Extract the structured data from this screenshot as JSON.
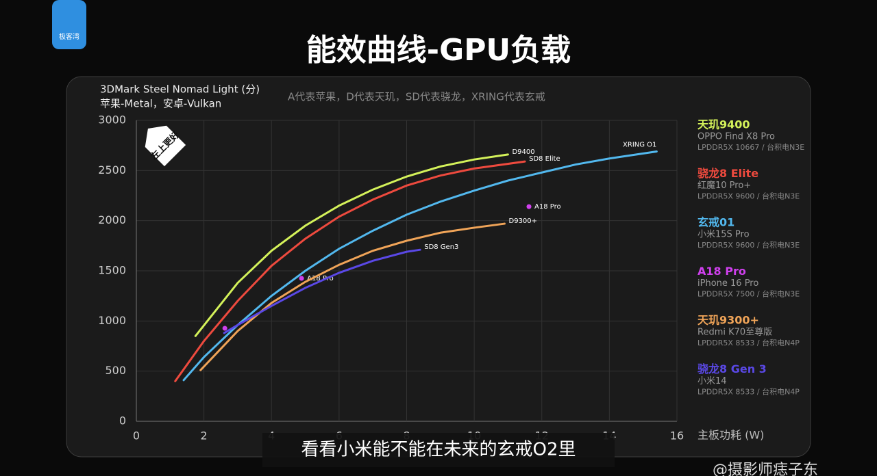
{
  "logo": "极客湾",
  "caption": "看看小米能不能在未来的玄戒O2里",
  "watermark": "@摄影师痣子东",
  "chart_data": {
    "type": "line",
    "title": "能效曲线-GPU负载",
    "y_label": [
      "3DMark Steel Nomad Light (分)",
      "苹果-Metal，安卓-Vulkan"
    ],
    "note": "A代表苹果，D代表天玑，SD代表骁龙，XRING代表玄戒",
    "x_label": "主板功耗 (W)",
    "badge": "左上更好",
    "xlim": [
      0,
      16
    ],
    "xticks": [
      0,
      2,
      4,
      6,
      8,
      10,
      12,
      14,
      16
    ],
    "ylim": [
      0,
      3000
    ],
    "yticks": [
      0,
      500,
      1000,
      1500,
      2000,
      2500,
      3000
    ],
    "grid": true,
    "series": [
      {
        "name": "天玑9400",
        "device": "OPPO Find X8 Pro",
        "memory": "LPDDR5X 10667 / 台积电N3E",
        "label": "D9400",
        "color": "#d4f25a",
        "x": [
          1.75,
          3,
          4,
          5,
          6,
          7,
          8,
          9,
          10,
          11
        ],
        "values": [
          850,
          1380,
          1700,
          1950,
          2150,
          2310,
          2440,
          2540,
          2610,
          2660
        ]
      },
      {
        "name": "骁龙8 Elite",
        "device": "红魔10 Pro+",
        "memory": "LPDDR5X 9600 / 台积电N3E",
        "label": "SD8 Elite",
        "color": "#ee4a3e",
        "x": [
          1.15,
          2,
          3,
          4,
          5,
          6,
          7,
          8,
          9,
          10,
          11.5
        ],
        "values": [
          400,
          800,
          1200,
          1550,
          1820,
          2040,
          2210,
          2350,
          2450,
          2520,
          2590
        ]
      },
      {
        "name": "玄戒01",
        "device": "小米15S Pro",
        "memory": "LPDDR5X 9600 / 台积电N3E",
        "label": "XRING O1",
        "color": "#52b8ee",
        "x": [
          1.4,
          2,
          3,
          4,
          5,
          6,
          7,
          8,
          9,
          10,
          11,
          12,
          13,
          14,
          15.4
        ],
        "values": [
          410,
          640,
          960,
          1250,
          1500,
          1720,
          1900,
          2060,
          2190,
          2300,
          2400,
          2480,
          2560,
          2620,
          2690
        ]
      },
      {
        "name": "A18 Pro",
        "device": "iPhone 16 Pro",
        "memory": "LPDDR5X 7500 / 台积电N3E",
        "type": "scatter",
        "color": "#d040ee",
        "x": [
          2.62,
          4.89,
          11.62
        ],
        "values": [
          927,
          1425,
          2140
        ],
        "point_labels": [
          null,
          "A18 Pro",
          "A18 Pro"
        ]
      },
      {
        "name": "天玑9300+",
        "device": "Redmi K70至尊版",
        "memory": "LPDDR5X 8533 / 台积电N4P",
        "label": "D9300+",
        "color": "#f0a458",
        "x": [
          1.9,
          3,
          4,
          5,
          6,
          7,
          8,
          9,
          10,
          10.9
        ],
        "values": [
          510,
          900,
          1180,
          1390,
          1560,
          1700,
          1800,
          1880,
          1930,
          1970
        ]
      },
      {
        "name": "骁龙8 Gen 3",
        "device": "小米14",
        "memory": "LPDDR5X 8533 / 台积电N4P",
        "label": "SD8 Gen3",
        "color": "#5a48e6",
        "x": [
          2.6,
          3,
          4,
          5,
          6,
          7,
          8,
          8.4
        ],
        "values": [
          880,
          960,
          1150,
          1330,
          1480,
          1600,
          1690,
          1710
        ]
      }
    ]
  }
}
